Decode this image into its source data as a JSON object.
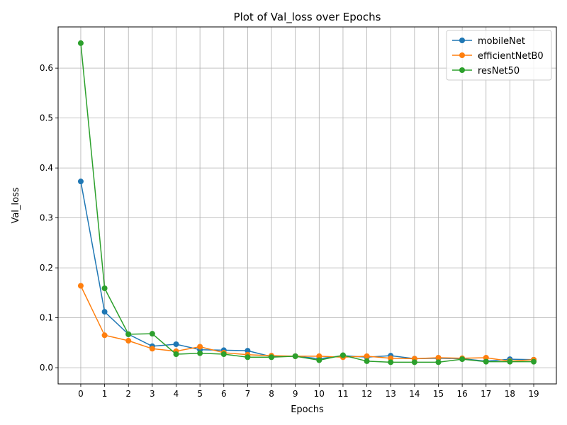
{
  "chart_data": {
    "type": "line",
    "title": "Plot of Val_loss over Epochs",
    "xlabel": "Epochs",
    "ylabel": "Val_loss",
    "x": [
      0,
      1,
      2,
      3,
      4,
      5,
      6,
      7,
      8,
      9,
      10,
      11,
      12,
      13,
      14,
      15,
      16,
      17,
      18,
      19
    ],
    "xlim": [
      -0.95,
      19.95
    ],
    "ylim": [
      -0.0325,
      0.6825
    ],
    "yticks": [
      0.0,
      0.1,
      0.2,
      0.3,
      0.4,
      0.5,
      0.6
    ],
    "ytick_labels": [
      "0.0",
      "0.1",
      "0.2",
      "0.3",
      "0.4",
      "0.5",
      "0.6"
    ],
    "xtick_labels": [
      "0",
      "1",
      "2",
      "3",
      "4",
      "5",
      "6",
      "7",
      "8",
      "9",
      "10",
      "11",
      "12",
      "13",
      "14",
      "15",
      "16",
      "17",
      "18",
      "19"
    ],
    "grid": true,
    "legend_position": "top-right",
    "series": [
      {
        "name": "mobileNet",
        "color": "#1f77b4",
        "values": [
          0.373,
          0.112,
          0.067,
          0.043,
          0.047,
          0.036,
          0.035,
          0.034,
          0.022,
          0.023,
          0.018,
          0.024,
          0.021,
          0.024,
          0.018,
          0.019,
          0.018,
          0.013,
          0.017,
          0.016
        ]
      },
      {
        "name": "efficientNetB0",
        "color": "#ff7f0e",
        "values": [
          0.164,
          0.065,
          0.054,
          0.038,
          0.033,
          0.042,
          0.03,
          0.026,
          0.024,
          0.023,
          0.023,
          0.021,
          0.023,
          0.019,
          0.018,
          0.02,
          0.019,
          0.02,
          0.013,
          0.016
        ]
      },
      {
        "name": "resNet50",
        "color": "#2ca02c",
        "values": [
          0.65,
          0.159,
          0.067,
          0.068,
          0.027,
          0.029,
          0.027,
          0.021,
          0.021,
          0.023,
          0.015,
          0.025,
          0.013,
          0.011,
          0.011,
          0.011,
          0.017,
          0.012,
          0.012,
          0.012
        ]
      }
    ]
  }
}
